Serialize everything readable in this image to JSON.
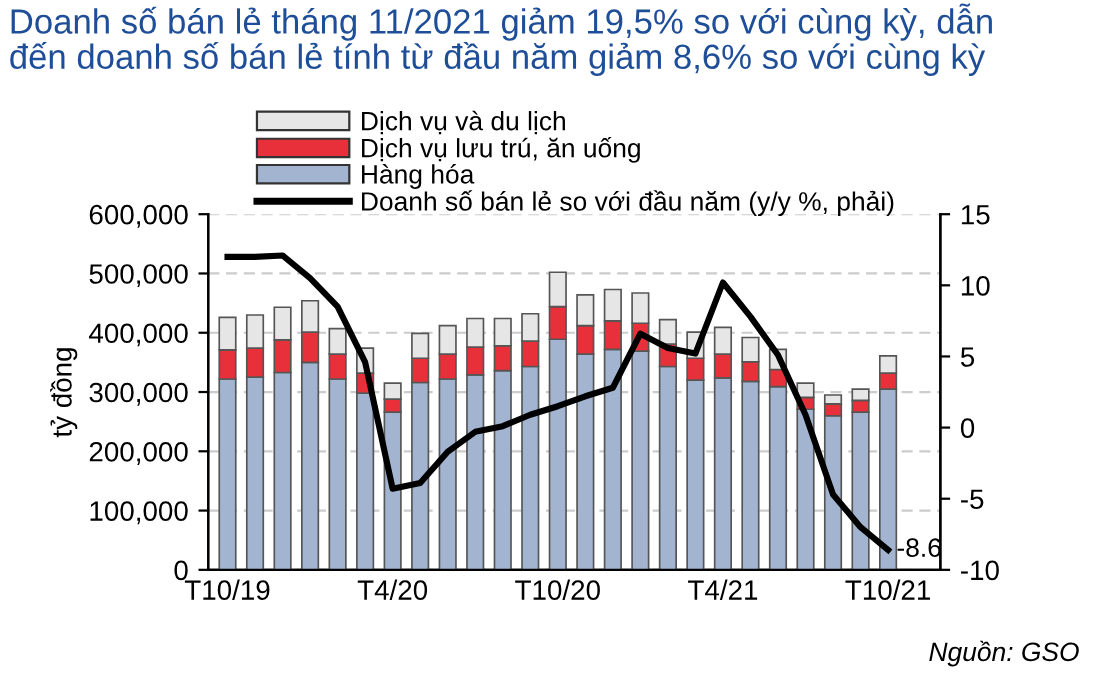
{
  "chart_data": {
    "type": "bar",
    "stacked": true,
    "title": "Doanh số bán lẻ tháng 11/2021 giảm 19,5% so với cùng kỳ, dẫn\nđến doanh số bán lẻ tính từ đầu năm giảm 8,6% so với cùng kỳ",
    "ylabel": "tỷ đồng",
    "categories": [
      "T10/19",
      null,
      null,
      null,
      null,
      null,
      "T4/20",
      null,
      null,
      null,
      null,
      null,
      "T10/20",
      null,
      null,
      null,
      null,
      null,
      "T4/21",
      null,
      null,
      null,
      null,
      null,
      "T10/21"
    ],
    "series": [
      {
        "name": "Hàng hóa",
        "color": "#a2b4d0",
        "values": [
          322000,
          325000,
          333000,
          350000,
          322000,
          298000,
          266000,
          316000,
          322000,
          329000,
          336000,
          343000,
          389000,
          364000,
          372000,
          369000,
          343000,
          320000,
          324000,
          318000,
          309000,
          271000,
          260000,
          266000,
          305000
        ]
      },
      {
        "name": "Dịch vụ lưu trú, ăn uống",
        "color": "#e8303a",
        "values": [
          49000,
          49000,
          55000,
          51000,
          42000,
          34000,
          22000,
          41000,
          42000,
          47000,
          42000,
          43000,
          55000,
          48000,
          48000,
          47000,
          38000,
          37000,
          40000,
          33000,
          29000,
          20000,
          20000,
          20000,
          27000
        ]
      },
      {
        "name": "Dịch vụ và du lịch",
        "color": "#e6e6e6",
        "values": [
          55000,
          56000,
          55000,
          53000,
          43000,
          42000,
          27000,
          42000,
          48000,
          48000,
          46000,
          46000,
          58000,
          52000,
          53000,
          51000,
          41000,
          44000,
          45000,
          41000,
          34000,
          24000,
          15000,
          19000,
          29000
        ]
      },
      {
        "name": "Doanh số bán lẻ so với đầu năm (y/y %, phải)",
        "type": "line",
        "axis": "y2",
        "color": "#000000",
        "values": [
          12.0,
          12.0,
          12.1,
          10.5,
          8.5,
          4.6,
          -4.3,
          -3.9,
          -1.7,
          -0.3,
          0.1,
          0.9,
          1.5,
          2.2,
          2.8,
          6.6,
          5.6,
          5.2,
          10.2,
          7.8,
          5.1,
          0.9,
          -4.7,
          -7.0,
          -8.6
        ]
      }
    ],
    "ylim": [
      0,
      600000
    ],
    "yticks": [
      {
        "value": 0,
        "label": "0"
      },
      {
        "value": 100000,
        "label": "100,000"
      },
      {
        "value": 200000,
        "label": "200,000"
      },
      {
        "value": 300000,
        "label": "300,000"
      },
      {
        "value": 400000,
        "label": "400,000"
      },
      {
        "value": 500000,
        "label": "500,000"
      },
      {
        "value": 600000,
        "label": "600,000"
      }
    ],
    "y2lim": [
      -10,
      15
    ],
    "y2ticks": [
      -10,
      -5,
      0,
      5,
      10,
      15
    ],
    "grid": "y",
    "legend": "top left",
    "annotations": [
      "-8.6",
      "Nguồn: GSO"
    ]
  }
}
